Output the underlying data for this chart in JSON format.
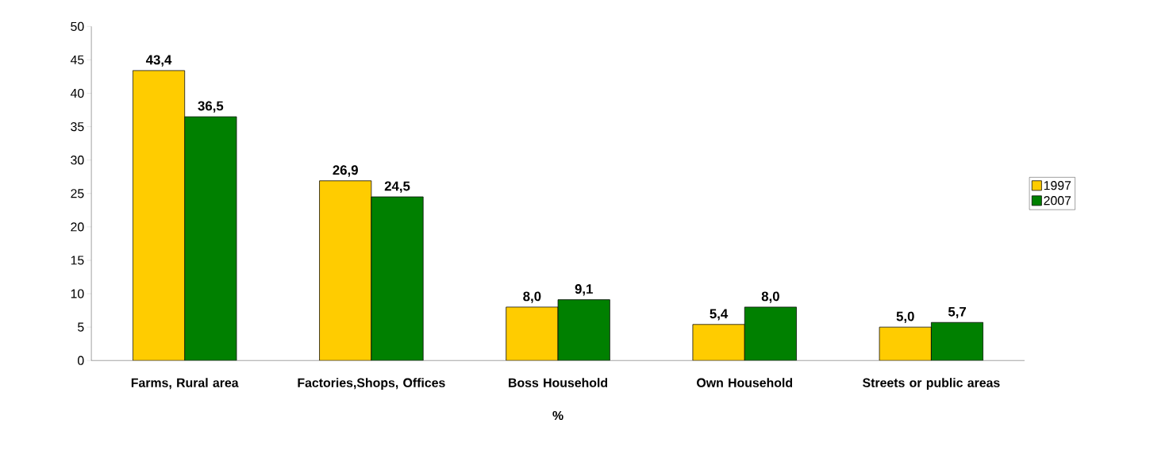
{
  "chart_data": {
    "type": "bar",
    "xlabel": "%",
    "categories": [
      "Farms, Rural area",
      "Factories,Shops, Offices",
      "Boss Household",
      "Own Household",
      "Streets or public areas"
    ],
    "series": [
      {
        "name": "1997",
        "color": "#ffcc00",
        "values": [
          43.4,
          26.9,
          8.0,
          5.4,
          5.0
        ],
        "value_labels": [
          "43,4",
          "26,9",
          "8,0",
          "5,4",
          "5,0"
        ]
      },
      {
        "name": "2007",
        "color": "#008000",
        "values": [
          36.5,
          24.5,
          9.1,
          8.0,
          5.7
        ],
        "value_labels": [
          "36,5",
          "24,5",
          "9,1",
          "8,0",
          "5,7"
        ]
      }
    ],
    "ylim": [
      0,
      50
    ],
    "yticks": [
      0,
      5,
      10,
      15,
      20,
      25,
      30,
      35,
      40,
      45,
      50
    ],
    "legend": "right"
  }
}
